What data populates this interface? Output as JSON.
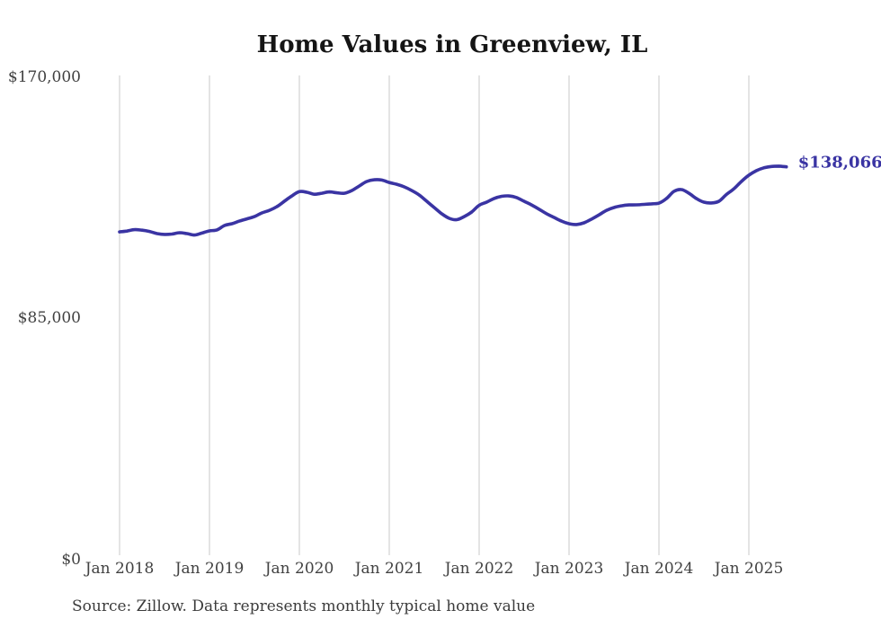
{
  "title": "Home Values in Greenview, IL",
  "source_note": "Source: Zillow. Data represents monthly typical home value",
  "colors": {
    "line": "#3a34a3",
    "grid": "#c9c9c9",
    "tick_text": "#414141",
    "title_text": "#151515",
    "source_text": "#3c3c3c",
    "background": "#ffffff"
  },
  "chart_data": {
    "type": "line",
    "title": "Home Values in Greenview, IL",
    "xlabel": "",
    "ylabel": "",
    "ylim": [
      0,
      170000
    ],
    "grid": "vertical-only",
    "legend": "none",
    "y_tick_labels": [
      "$0",
      "$85,000",
      "$170,000"
    ],
    "y_tick_values": [
      0,
      85000,
      170000
    ],
    "x_tick_labels": [
      "Jan 2018",
      "Jan 2019",
      "Jan 2020",
      "Jan 2021",
      "Jan 2022",
      "Jan 2023",
      "Jan 2024",
      "Jan 2025"
    ],
    "points_per_year": 12,
    "x_start_label": "Jan 2018",
    "last_value_label": "$138,066",
    "series": [
      {
        "name": "Monthly typical home value",
        "values": [
          115100,
          115400,
          115900,
          115700,
          115250,
          114500,
          114200,
          114350,
          114800,
          114500,
          114000,
          114700,
          115450,
          115800,
          117350,
          118000,
          118900,
          119700,
          120500,
          121800,
          122700,
          124000,
          125900,
          127800,
          129300,
          129100,
          128400,
          128750,
          129200,
          128900,
          128750,
          129700,
          131300,
          132900,
          133500,
          133400,
          132550,
          131900,
          131000,
          129700,
          128100,
          125900,
          123700,
          121500,
          119900,
          119400,
          120500,
          122100,
          124500,
          125600,
          126900,
          127650,
          127800,
          127200,
          125900,
          124600,
          123100,
          121500,
          120200,
          118900,
          118000,
          117700,
          118300,
          119600,
          121100,
          122700,
          123700,
          124300,
          124600,
          124650,
          124800,
          125000,
          125260,
          126850,
          129400,
          130050,
          128750,
          126850,
          125600,
          125300,
          125900,
          128300,
          130300,
          132900,
          135100,
          136700,
          137700,
          138200,
          138300,
          138066
        ]
      }
    ]
  }
}
